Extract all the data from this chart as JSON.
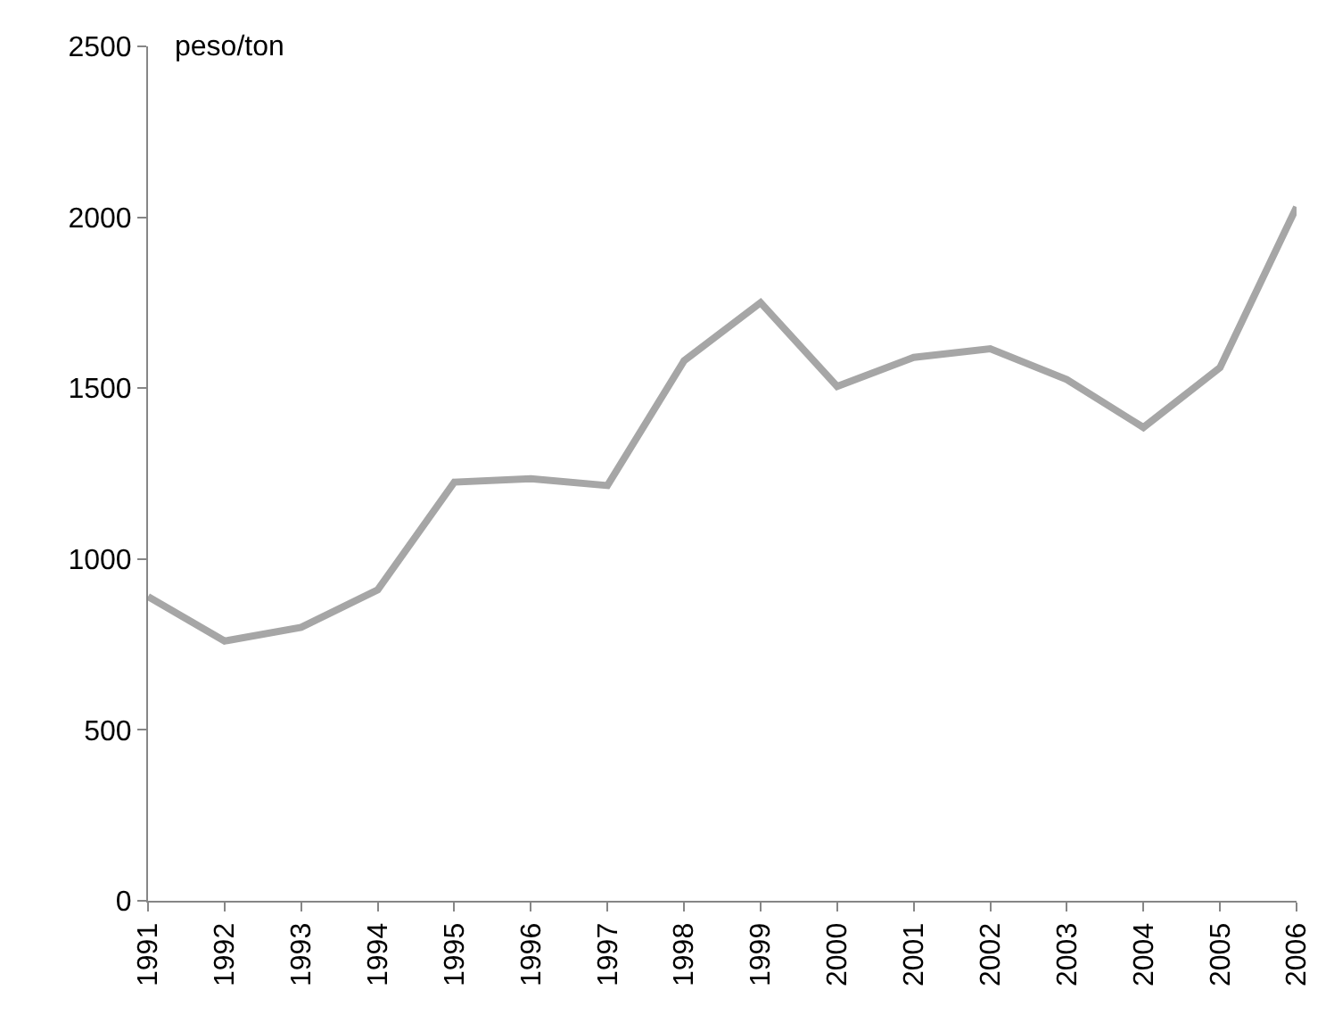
{
  "chart_data": {
    "type": "line",
    "ylabel": "peso/ton",
    "categories": [
      "1991",
      "1992",
      "1993",
      "1994",
      "1995",
      "1996",
      "1997",
      "1998",
      "1999",
      "2000",
      "2001",
      "2002",
      "2003",
      "2004",
      "2005",
      "2006"
    ],
    "series": [
      {
        "color": "#a6a6a6",
        "values": [
          890,
          760,
          800,
          910,
          1225,
          1235,
          1215,
          1580,
          1750,
          1505,
          1590,
          1615,
          1525,
          1385,
          1560,
          2030
        ]
      }
    ],
    "ylim": [
      0,
      2500
    ],
    "yticks": [
      0,
      500,
      1000,
      1500,
      2000,
      2500
    ],
    "grid": false,
    "marker": "none",
    "line_style": "solid"
  }
}
